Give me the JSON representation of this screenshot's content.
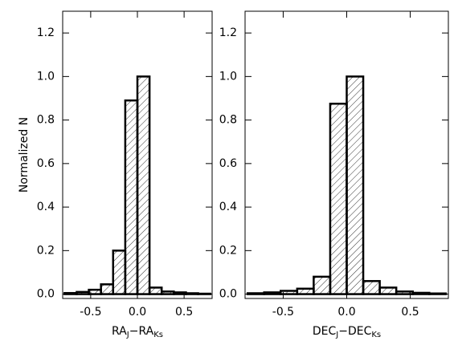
{
  "chart_data": [
    {
      "type": "histogram",
      "ylabel": "Normalized N",
      "xlabel": [
        "RA",
        "J",
        "−RA",
        "Ks"
      ],
      "bins": [
        -0.78,
        -0.65,
        -0.52,
        -0.39,
        -0.26,
        -0.13,
        0,
        0.13,
        0.26,
        0.39,
        0.52,
        0.65,
        0.78
      ],
      "values": [
        0.005,
        0.01,
        0.02,
        0.045,
        0.2,
        0.89,
        1.0,
        0.03,
        0.012,
        0.008,
        0.004,
        0.002
      ],
      "color": "#000000",
      "hatch": true,
      "xlim": [
        -0.8,
        0.8
      ],
      "ylim": [
        -0.02,
        1.3
      ],
      "xticks": [
        {
          "value": -0.5,
          "label": "-0.5"
        },
        {
          "value": 0,
          "label": "0.0"
        },
        {
          "value": 0.5,
          "label": "0.5"
        }
      ],
      "yticks": [
        {
          "value": 0,
          "label": "0.0"
        },
        {
          "value": 0.2,
          "label": "0.2"
        },
        {
          "value": 0.4,
          "label": "0.4"
        },
        {
          "value": 0.6,
          "label": "0.6"
        },
        {
          "value": 0.8,
          "label": "0.8"
        },
        {
          "value": 1.0,
          "label": "1.0"
        },
        {
          "value": 1.2,
          "label": "1.2"
        }
      ]
    },
    {
      "type": "histogram",
      "xlabel": [
        "DEC",
        "J",
        "−DEC",
        "Ks"
      ],
      "bins": [
        -0.78,
        -0.65,
        -0.52,
        -0.39,
        -0.26,
        -0.13,
        0,
        0.13,
        0.26,
        0.39,
        0.52,
        0.65,
        0.78
      ],
      "values": [
        0.004,
        0.008,
        0.015,
        0.025,
        0.08,
        0.875,
        1.0,
        0.06,
        0.03,
        0.012,
        0.006,
        0.003
      ],
      "color": "#000000",
      "hatch": true,
      "xlim": [
        -0.8,
        0.8
      ],
      "ylim": [
        -0.02,
        1.3
      ],
      "xticks": [
        {
          "value": -0.5,
          "label": "-0.5"
        },
        {
          "value": 0,
          "label": "0.0"
        },
        {
          "value": 0.5,
          "label": "0.5"
        }
      ],
      "yticks": [
        {
          "value": 0,
          "label": "0.0"
        },
        {
          "value": 0.2,
          "label": "0.2"
        },
        {
          "value": 0.4,
          "label": "0.4"
        },
        {
          "value": 0.6,
          "label": "0.6"
        },
        {
          "value": 0.8,
          "label": "0.8"
        },
        {
          "value": 1.0,
          "label": "1.0"
        },
        {
          "value": 1.2,
          "label": "1.2"
        }
      ]
    }
  ]
}
